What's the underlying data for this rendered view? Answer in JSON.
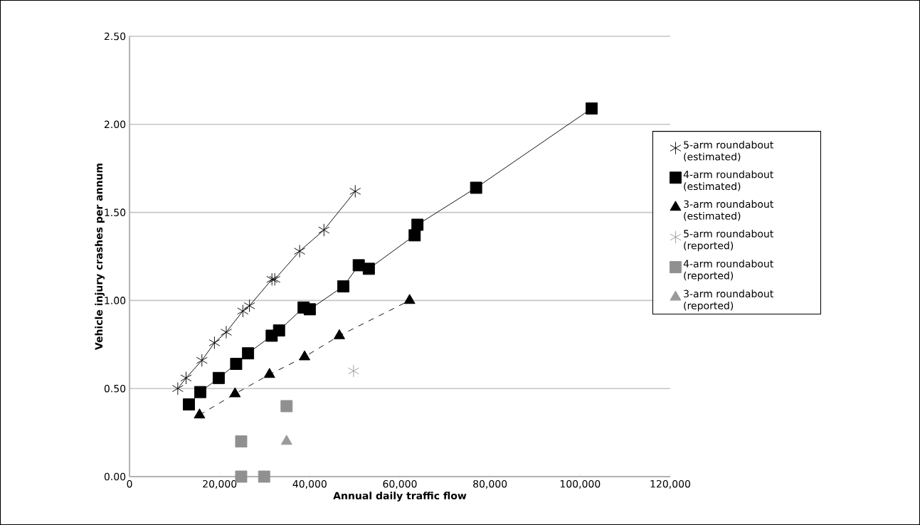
{
  "chart_data": {
    "type": "scatter",
    "xlabel": "Annual daily traffic flow",
    "ylabel": "Vehicle injury crashes per annum",
    "xlim": [
      0,
      120000
    ],
    "ylim": [
      0,
      2.5
    ],
    "xticks": [
      0,
      {
        "value": 20000,
        "label": "20,000"
      },
      {
        "value": 40000,
        "label": "40,000"
      },
      {
        "value": 60000,
        "label": "60,000"
      },
      {
        "value": 80000,
        "label": "80,000"
      },
      {
        "value": 100000,
        "label": "100,000"
      },
      {
        "value": 120000,
        "label": "120,000"
      }
    ],
    "yticks": [
      {
        "value": 0,
        "label": "0.00"
      },
      {
        "value": 0.5,
        "label": "0.50"
      },
      {
        "value": 1,
        "label": "1.00"
      },
      {
        "value": 1.5,
        "label": "1.50"
      },
      {
        "value": 2,
        "label": "2.00"
      },
      {
        "value": 2.5,
        "label": "2.50"
      }
    ],
    "grid": "y",
    "legend": "right",
    "series": [
      {
        "name": "5-arm roundabout (estimated)",
        "type": "line",
        "marker": "cross",
        "line_style": "solid",
        "color": "#000000",
        "x": [
          10710,
          12550,
          16070,
          18850,
          21470,
          25150,
          26620,
          31610,
          32240,
          37750,
          43150,
          50090
        ],
        "values": [
          0.5,
          0.56,
          0.66,
          0.76,
          0.82,
          0.94,
          0.97,
          1.12,
          1.12,
          1.28,
          1.4,
          1.62
        ]
      },
      {
        "name": "4-arm roundabout (estimated)",
        "type": "line",
        "marker": "square",
        "line_style": "solid",
        "color": "#000000",
        "x": [
          13180,
          15700,
          19800,
          23670,
          26300,
          31550,
          33190,
          38630,
          40010,
          47450,
          50870,
          53110,
          63280,
          63900,
          76920,
          102550
        ],
        "values": [
          0.41,
          0.48,
          0.56,
          0.64,
          0.7,
          0.8,
          0.83,
          0.96,
          0.95,
          1.08,
          1.2,
          1.18,
          1.37,
          1.43,
          1.64,
          2.09
        ]
      },
      {
        "name": "3-arm roundabout (estimated)",
        "type": "line",
        "marker": "triangle",
        "line_style": "dashed",
        "color": "#000000",
        "x": [
          15540,
          23420,
          31070,
          38850,
          46570,
          62160
        ],
        "values": [
          0.35,
          0.47,
          0.58,
          0.68,
          0.8,
          1.0
        ]
      },
      {
        "name": "5-arm roundabout (reported)",
        "type": "scatter",
        "marker": "cross",
        "color": "#9a9a9a",
        "x": [
          49720
        ],
        "values": [
          0.6
        ]
      },
      {
        "name": "4-arm roundabout (reported)",
        "type": "scatter",
        "marker": "square",
        "color": "#909090",
        "x": [
          24780,
          34860,
          24780,
          29880
        ],
        "values": [
          0.2,
          0.4,
          0.0,
          0.0
        ]
      },
      {
        "name": "3-arm roundabout (reported)",
        "type": "scatter",
        "marker": "triangle",
        "color": "#9a9a9a",
        "x": [
          34860
        ],
        "values": [
          0.2
        ]
      }
    ]
  }
}
